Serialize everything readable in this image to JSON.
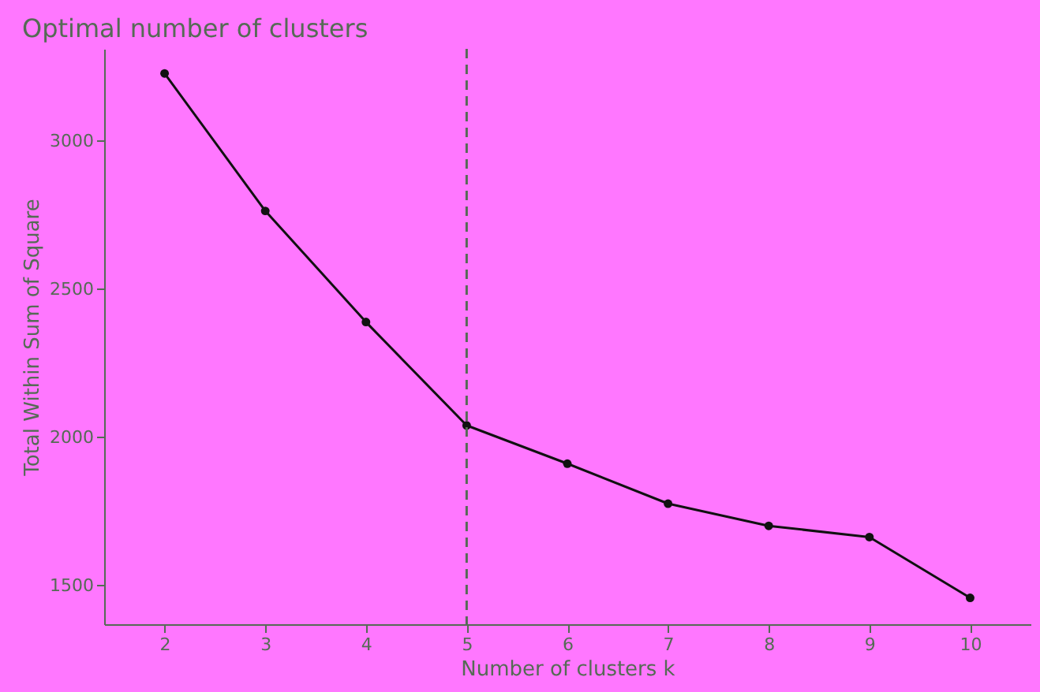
{
  "chart_data": {
    "type": "line",
    "title": "Optimal number of clusters",
    "xlabel": "Number of clusters k",
    "ylabel": "Total Within Sum of Square",
    "x": [
      2,
      3,
      4,
      5,
      6,
      7,
      8,
      9,
      10
    ],
    "series": [
      {
        "color": "#111111",
        "values": [
          3228,
          2764,
          2389,
          2040,
          1911,
          1776,
          1701,
          1663,
          1458
        ]
      }
    ],
    "xlim": [
      1.4,
      10.6
    ],
    "xticks": [
      2,
      3,
      4,
      5,
      6,
      7,
      8,
      9,
      10
    ],
    "ylim": [
      1369,
      3311
    ],
    "yticks": [
      1500,
      2000,
      2500,
      3000
    ],
    "ref_lines": [
      {
        "axis": "x",
        "value": 5,
        "color": "#556b55",
        "line_style": "dashed"
      }
    ],
    "marker": "circle",
    "line_style": "solid",
    "grid": false
  }
}
